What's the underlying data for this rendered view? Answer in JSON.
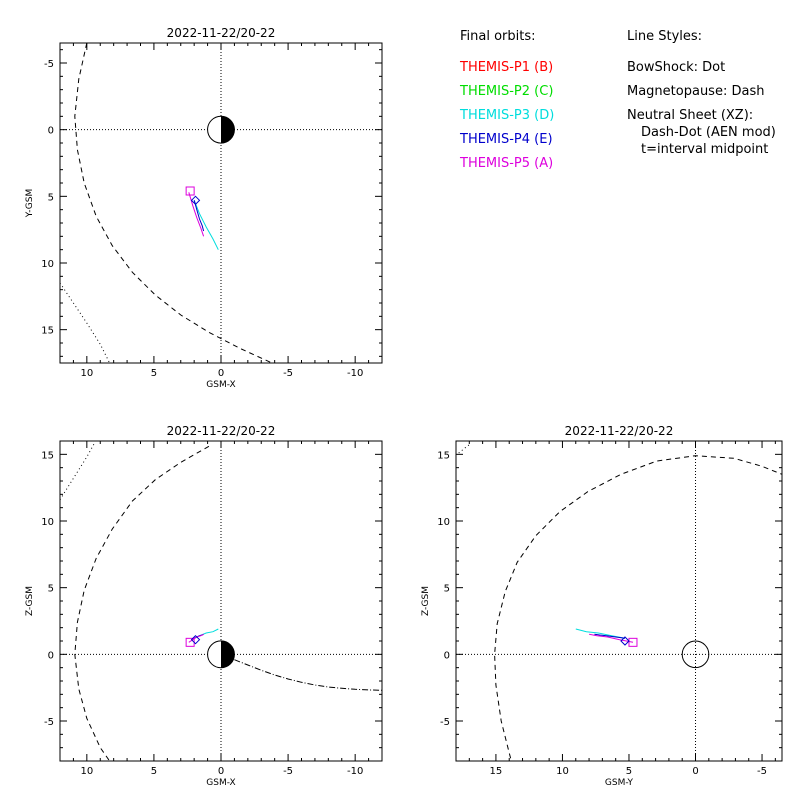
{
  "legend": {
    "orbits_header": "Final orbits:",
    "styles_header": "Line Styles:",
    "probes": [
      {
        "label": "THEMIS-P1 (B)",
        "color": "#ff0000"
      },
      {
        "label": "THEMIS-P2 (C)",
        "color": "#00dd00"
      },
      {
        "label": "THEMIS-P3 (D)",
        "color": "#00dddd"
      },
      {
        "label": "THEMIS-P4 (E)",
        "color": "#0000cc"
      },
      {
        "label": "THEMIS-P5 (A)",
        "color": "#dd00dd"
      }
    ],
    "styles": [
      "BowShock: Dot",
      "Magnetopause: Dash",
      "Neutral Sheet (XZ):",
      "Dash-Dot (AEN mod)",
      "t=interval midpoint"
    ]
  },
  "chart_data": [
    {
      "type": "line",
      "title": "2022-11-22/20-22",
      "xlabel": "GSM-X",
      "ylabel": "Y-GSM",
      "xlim": [
        12,
        -12
      ],
      "ylim": [
        17.5,
        -6.5
      ],
      "xticks": [
        10,
        5,
        0,
        -5,
        -10
      ],
      "yticks": [
        -5,
        0,
        5,
        10,
        15
      ],
      "earth": true,
      "series": [
        {
          "name": "Magnetopause",
          "style": "dash",
          "color": "#000000",
          "x": [
            10,
            10.6,
            10.9,
            10.7,
            10.2,
            9.3,
            8.1,
            6.6,
            4.9,
            3.0,
            0.9,
            -1.4,
            -3.8
          ],
          "y": [
            -6.5,
            -3.8,
            -1.0,
            1.5,
            4.0,
            6.5,
            8.7,
            10.7,
            12.4,
            13.9,
            15.2,
            16.4,
            17.5
          ]
        },
        {
          "name": "BowShock",
          "style": "dot",
          "color": "#000000",
          "x": [
            12,
            11,
            10,
            9,
            8.3
          ],
          "y": [
            11.5,
            13.0,
            14.5,
            16.1,
            17.5
          ]
        },
        {
          "name": "THEMIS-P3",
          "style": "solid",
          "color": "#00dddd",
          "x": [
            2.0,
            1.6,
            1.1,
            0.6,
            0.2
          ],
          "y": [
            5.3,
            6.3,
            7.3,
            8.2,
            9.0
          ]
        },
        {
          "name": "THEMIS-P4",
          "style": "solid",
          "color": "#0000cc",
          "x": [
            2.0,
            1.8,
            1.6,
            1.4,
            1.3
          ],
          "y": [
            5.3,
            6.0,
            6.7,
            7.2,
            7.6
          ]
        },
        {
          "name": "THEMIS-P5",
          "style": "solid",
          "color": "#dd00dd",
          "x": [
            2.4,
            2.1,
            1.8,
            1.5,
            1.3
          ],
          "y": [
            4.7,
            5.7,
            6.6,
            7.4,
            8.0
          ]
        }
      ],
      "markers": [
        {
          "shape": "square",
          "x": 2.3,
          "y": 4.6,
          "color": "#dd00dd"
        },
        {
          "shape": "diamond",
          "x": 1.9,
          "y": 5.3,
          "color": "#0000cc"
        }
      ]
    },
    {
      "type": "line",
      "title": "2022-11-22/20-22",
      "xlabel": "GSM-X",
      "ylabel": "Z-GSM",
      "xlim": [
        12,
        -12
      ],
      "ylim": [
        -8,
        16
      ],
      "xticks": [
        10,
        5,
        0,
        -5,
        -10
      ],
      "yticks": [
        -5,
        0,
        5,
        10,
        15
      ],
      "earth": true,
      "series": [
        {
          "name": "Magnetopause",
          "style": "dash",
          "color": "#000000",
          "x": [
            0.9,
            3.0,
            4.9,
            6.6,
            8.1,
            9.3,
            10.2,
            10.7,
            10.9,
            10.6,
            10.0,
            9.0,
            8.3
          ],
          "y": [
            15.6,
            14.4,
            13.1,
            11.5,
            9.4,
            7.2,
            4.8,
            2.4,
            0,
            -2.6,
            -4.8,
            -7.0,
            -8.0
          ]
        },
        {
          "name": "BowShock",
          "style": "dot",
          "color": "#000000",
          "x": [
            12,
            11,
            10,
            9.4
          ],
          "y": [
            11.6,
            13.2,
            14.8,
            15.9
          ]
        },
        {
          "name": "Neutral Sheet",
          "style": "dashdot",
          "color": "#000000",
          "x": [
            -1,
            -2,
            -3,
            -4,
            -5,
            -6,
            -7,
            -8,
            -9,
            -10,
            -11,
            -12
          ],
          "y": [
            -0.4,
            -0.8,
            -1.2,
            -1.55,
            -1.85,
            -2.1,
            -2.3,
            -2.45,
            -2.55,
            -2.62,
            -2.67,
            -2.7
          ]
        },
        {
          "name": "THEMIS-P3",
          "style": "solid",
          "color": "#00dddd",
          "x": [
            2.0,
            1.6,
            1.1,
            0.6,
            0.2
          ],
          "y": [
            1.2,
            1.4,
            1.6,
            1.7,
            1.9
          ]
        },
        {
          "name": "THEMIS-P4",
          "style": "solid",
          "color": "#0000cc",
          "x": [
            2.0,
            1.8,
            1.6,
            1.4,
            1.3
          ],
          "y": [
            1.2,
            1.3,
            1.4,
            1.45,
            1.5
          ]
        },
        {
          "name": "THEMIS-P5",
          "style": "solid",
          "color": "#dd00dd",
          "x": [
            2.4,
            2.1,
            1.8,
            1.5,
            1.3
          ],
          "y": [
            0.9,
            1.1,
            1.3,
            1.4,
            1.5
          ]
        }
      ],
      "markers": [
        {
          "shape": "square",
          "x": 2.3,
          "y": 0.9,
          "color": "#dd00dd"
        },
        {
          "shape": "diamond",
          "x": 1.9,
          "y": 1.1,
          "color": "#0000cc"
        }
      ]
    },
    {
      "type": "line",
      "title": "2022-11-22/20-22",
      "xlabel": "GSM-Y",
      "ylabel": "Z-GSM",
      "xlim": [
        18,
        -6.5
      ],
      "ylim": [
        -8,
        16
      ],
      "xticks": [
        15,
        10,
        5,
        0,
        -5
      ],
      "yticks": [
        -5,
        0,
        5,
        10,
        15
      ],
      "earth": false,
      "series": [
        {
          "name": "Magnetopause",
          "style": "dash",
          "color": "#000000",
          "x": [
            13.9,
            14.6,
            15.0,
            15.1,
            14.9,
            14.3,
            13.4,
            12.0,
            10.2,
            8.1,
            5.6,
            2.9,
            0,
            -2.9,
            -5.0,
            -6.5
          ],
          "y": [
            -7.8,
            -5.0,
            -2.3,
            0.0,
            2.3,
            4.7,
            6.9,
            8.9,
            10.7,
            12.2,
            13.5,
            14.5,
            14.9,
            14.7,
            14.1,
            13.5
          ]
        },
        {
          "name": "BowShock",
          "style": "dot",
          "color": "#000000",
          "x": [
            17.8,
            17.3,
            16.9
          ],
          "y": [
            15.1,
            15.5,
            15.8
          ]
        },
        {
          "name": "THEMIS-P3",
          "style": "solid",
          "color": "#00dddd",
          "x": [
            5.3,
            6.3,
            7.3,
            8.2,
            9.0
          ],
          "y": [
            1.2,
            1.4,
            1.6,
            1.7,
            1.9
          ]
        },
        {
          "name": "THEMIS-P4",
          "style": "solid",
          "color": "#0000cc",
          "x": [
            5.3,
            6.0,
            6.7,
            7.2,
            7.6
          ],
          "y": [
            1.2,
            1.3,
            1.4,
            1.45,
            1.5
          ]
        },
        {
          "name": "THEMIS-P5",
          "style": "solid",
          "color": "#dd00dd",
          "x": [
            4.7,
            5.7,
            6.6,
            7.4,
            8.0
          ],
          "y": [
            0.9,
            1.1,
            1.3,
            1.4,
            1.5
          ]
        }
      ],
      "markers": [
        {
          "shape": "square",
          "x": 4.7,
          "y": 0.9,
          "color": "#dd00dd"
        },
        {
          "shape": "diamond",
          "x": 5.3,
          "y": 1.0,
          "color": "#0000cc"
        }
      ]
    }
  ]
}
